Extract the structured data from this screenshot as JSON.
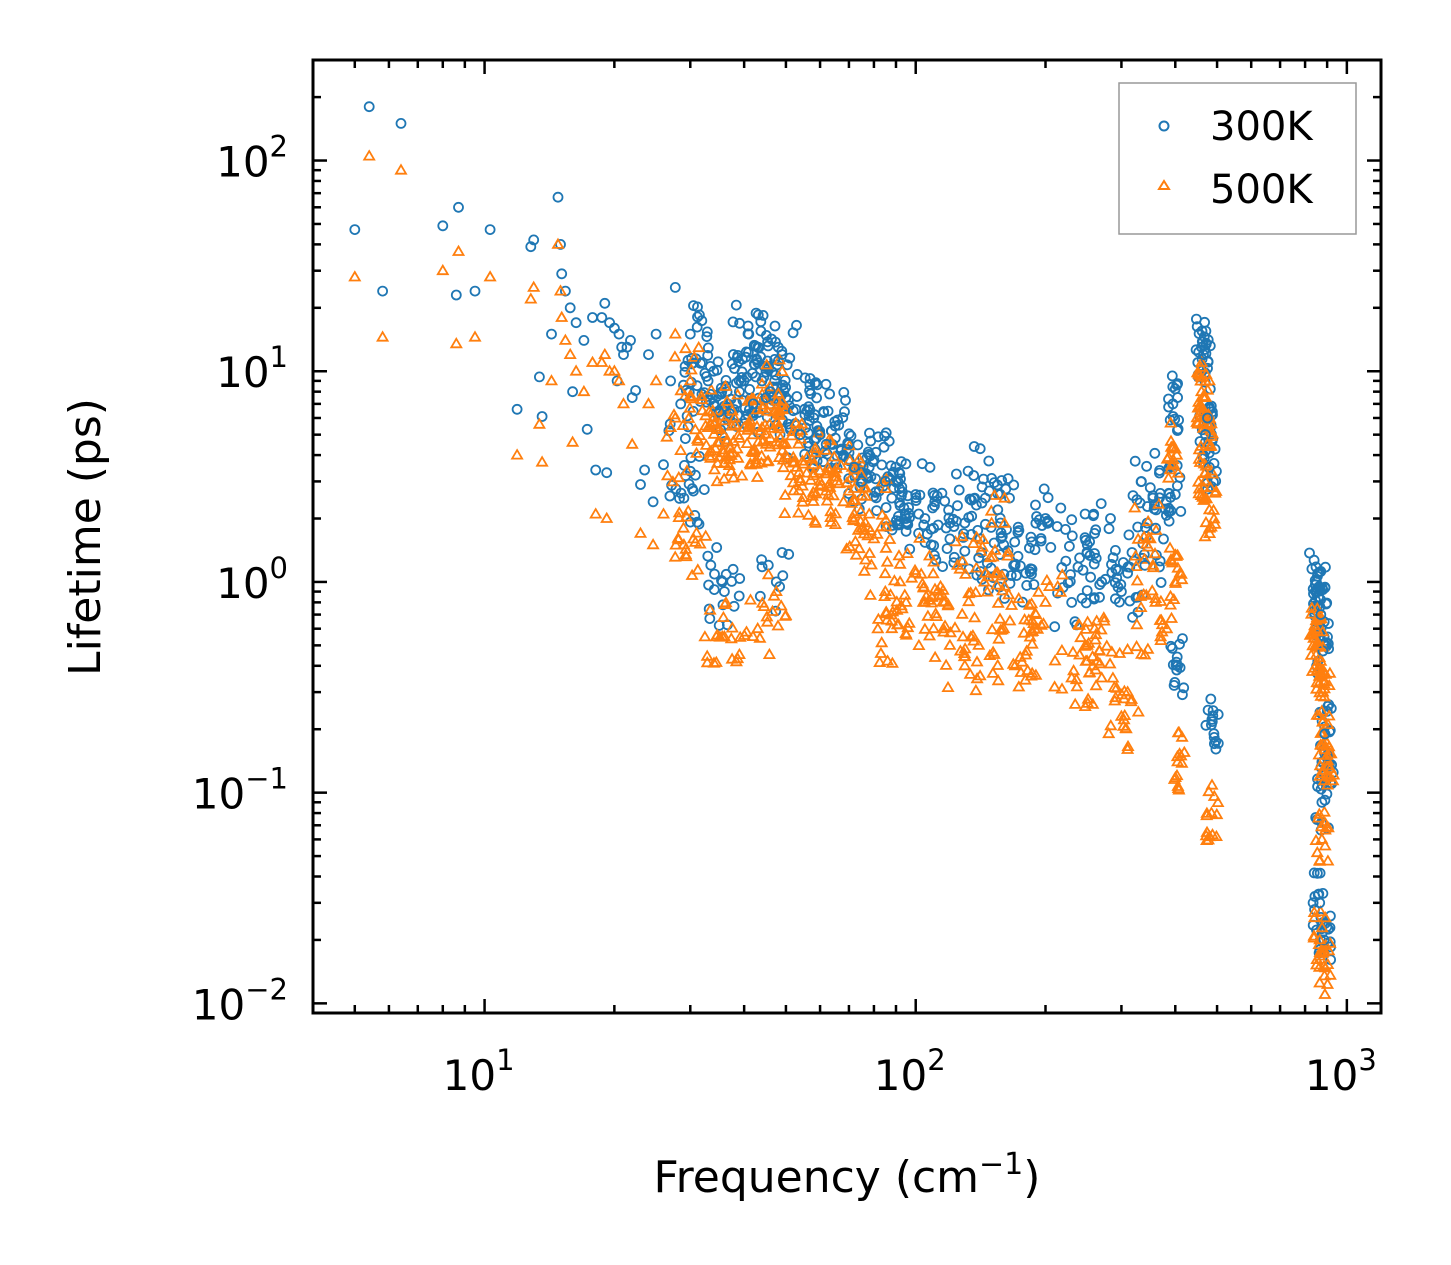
{
  "chart_data": {
    "type": "scatter",
    "xscale": "log",
    "yscale": "log",
    "xlabel": "Frequency (cm",
    "xlabel_exp": "−1",
    "xlabel_suffix": ")",
    "ylabel": "Lifetime (ps)",
    "xlim": [
      4,
      1200
    ],
    "ylim": [
      0.009,
      300
    ],
    "x_ticks": [
      {
        "value": 10,
        "base": "10",
        "exp": "1"
      },
      {
        "value": 100,
        "base": "10",
        "exp": "2"
      },
      {
        "value": 1000,
        "base": "10",
        "exp": "3"
      }
    ],
    "y_ticks": [
      {
        "value": 0.01,
        "base": "10",
        "exp": "−2"
      },
      {
        "value": 0.1,
        "base": "10",
        "exp": "−1"
      },
      {
        "value": 1,
        "base": "10",
        "exp": "0"
      },
      {
        "value": 10,
        "base": "10",
        "exp": "1"
      },
      {
        "value": 100,
        "base": "10",
        "exp": "2"
      }
    ],
    "legend_position": "top-right",
    "series": [
      {
        "name": "300K",
        "marker": "circle",
        "color": "#1f77b4",
        "points": [
          [
            5.0,
            47
          ],
          [
            5.4,
            180
          ],
          [
            5.8,
            24
          ],
          [
            6.4,
            150
          ],
          [
            8.0,
            49
          ],
          [
            8.6,
            23
          ],
          [
            8.7,
            60
          ],
          [
            9.5,
            24
          ],
          [
            10.3,
            47
          ],
          [
            11.9,
            6.6
          ],
          [
            12.8,
            39
          ],
          [
            13.0,
            42
          ],
          [
            13.4,
            9.4
          ],
          [
            13.6,
            6.1
          ],
          [
            14.3,
            15
          ],
          [
            14.8,
            67
          ],
          [
            15.0,
            40
          ],
          [
            15.1,
            29
          ],
          [
            15.4,
            24
          ],
          [
            15.8,
            20
          ],
          [
            16.0,
            8
          ],
          [
            16.3,
            17
          ],
          [
            17.0,
            14
          ],
          [
            17.3,
            5.3
          ],
          [
            17.8,
            18
          ],
          [
            18.1,
            3.4
          ],
          [
            18.7,
            18
          ],
          [
            19.0,
            21
          ],
          [
            19.2,
            3.3
          ],
          [
            19.5,
            17
          ],
          [
            20.0,
            16
          ],
          [
            20.3,
            9
          ],
          [
            20.5,
            15
          ],
          [
            20.8,
            13
          ],
          [
            21.0,
            12
          ],
          [
            21.4,
            13
          ],
          [
            21.8,
            14
          ],
          [
            22.0,
            7.5
          ],
          [
            22.4,
            8.1
          ],
          [
            23.0,
            2.9
          ],
          [
            23.5,
            3.4
          ],
          [
            24.0,
            12
          ],
          [
            24.6,
            2.4
          ],
          [
            25.0,
            15
          ],
          [
            26.0,
            3.6
          ],
          [
            27.0,
            9
          ],
          [
            27.7,
            25
          ],
          [
            28.5,
            7
          ],
          [
            29.0,
            2.5
          ],
          [
            30.0,
            15
          ],
          [
            30.5,
            2.7
          ],
          [
            32.0,
            11
          ],
          [
            33.0,
            9
          ],
          [
            34.0,
            10
          ],
          [
            35.0,
            6.4
          ],
          [
            35.6,
            1.0
          ],
          [
            36.0,
            0.9
          ],
          [
            37.0,
            6.3
          ],
          [
            38.0,
            10.3
          ],
          [
            39.0,
            8
          ],
          [
            40.0,
            9
          ],
          [
            41.0,
            15
          ],
          [
            42.0,
            7
          ],
          [
            43.0,
            13
          ],
          [
            44.0,
            9
          ],
          [
            45.0,
            7.5
          ],
          [
            46.0,
            8
          ],
          [
            47.5,
            1.0
          ],
          [
            48.0,
            13
          ],
          [
            49.0,
            12
          ],
          [
            50.0,
            7.5
          ],
          [
            52.0,
            6.5
          ],
          [
            54.0,
            5
          ],
          [
            56.0,
            6.5
          ],
          [
            58.0,
            6
          ],
          [
            60.0,
            5
          ],
          [
            62.0,
            4.5
          ],
          [
            65.0,
            5.5
          ],
          [
            68.0,
            4
          ],
          [
            70.0,
            4.5
          ],
          [
            72.0,
            3.5
          ],
          [
            75.0,
            3.0
          ],
          [
            78.0,
            3.5
          ],
          [
            80.0,
            3.8
          ],
          [
            85.0,
            3.0
          ],
          [
            88.0,
            2.5
          ],
          [
            92.0,
            2.3
          ],
          [
            95.0,
            2.0
          ],
          [
            100.0,
            2.6
          ],
          [
            105.0,
            2.0
          ],
          [
            110.0,
            1.8
          ],
          [
            120.0,
            1.6
          ],
          [
            125.0,
            2.3
          ],
          [
            130.0,
            1.4
          ],
          [
            140.0,
            1.3
          ],
          [
            145.0,
            2.5
          ],
          [
            150.0,
            3.1
          ],
          [
            155.0,
            2.2
          ],
          [
            160.0,
            1.5
          ],
          [
            170.0,
            1.2
          ],
          [
            180.0,
            1.1
          ],
          [
            190.0,
            1.9
          ],
          [
            200.0,
            2.0
          ],
          [
            230.0,
            0.8
          ],
          [
            240.0,
            1.3
          ],
          [
            250.0,
            1.5
          ],
          [
            260.0,
            1.7
          ],
          [
            270.0,
            1.0
          ],
          [
            300.0,
            0.9
          ],
          [
            310.0,
            1.1
          ],
          [
            340.0,
            1.2
          ],
          [
            350.0,
            2.8
          ],
          [
            355.0,
            2.5
          ],
          [
            360.0,
            1.8
          ],
          [
            395.0,
            7.0
          ],
          [
            400.0,
            2.6
          ],
          [
            405.0,
            0.4
          ],
          [
            460.0,
            13
          ],
          [
            465.0,
            12
          ],
          [
            470.0,
            5
          ],
          [
            475.0,
            6
          ],
          [
            480.0,
            3.5
          ],
          [
            485.0,
            0.21
          ],
          [
            850.0,
            1.0
          ],
          [
            860.0,
            0.85
          ],
          [
            870.0,
            0.7
          ],
          [
            880.0,
            0.47
          ],
          [
            890.0,
            0.19
          ],
          [
            900.0,
            0.15
          ],
          [
            875.0,
            0.09
          ],
          [
            865.0,
            0.03
          ],
          [
            885.0,
            0.02
          ]
        ]
      },
      {
        "name": "500K",
        "marker": "triangle",
        "color": "#ff7f0e",
        "points": [
          [
            5.0,
            28
          ],
          [
            5.4,
            105
          ],
          [
            5.8,
            14.5
          ],
          [
            6.4,
            90
          ],
          [
            8.0,
            30
          ],
          [
            8.6,
            13.5
          ],
          [
            8.7,
            37
          ],
          [
            9.5,
            14.5
          ],
          [
            10.3,
            28
          ],
          [
            11.9,
            4
          ],
          [
            12.8,
            22
          ],
          [
            13.0,
            25
          ],
          [
            13.4,
            5.6
          ],
          [
            13.6,
            3.7
          ],
          [
            14.3,
            9
          ],
          [
            14.8,
            40
          ],
          [
            15.0,
            24
          ],
          [
            15.1,
            18
          ],
          [
            15.4,
            14
          ],
          [
            15.8,
            12
          ],
          [
            16.0,
            4.6
          ],
          [
            16.3,
            10
          ],
          [
            17.0,
            8
          ],
          [
            17.8,
            11
          ],
          [
            18.1,
            2.1
          ],
          [
            18.7,
            11
          ],
          [
            19.0,
            12
          ],
          [
            19.2,
            2.0
          ],
          [
            19.5,
            10
          ],
          [
            20.0,
            10
          ],
          [
            20.5,
            9
          ],
          [
            21.0,
            7
          ],
          [
            22.0,
            4.5
          ],
          [
            23.0,
            1.7
          ],
          [
            24.0,
            7
          ],
          [
            24.6,
            1.5
          ],
          [
            25.0,
            9
          ],
          [
            26.0,
            2.1
          ],
          [
            27.0,
            5.4
          ],
          [
            27.7,
            15
          ],
          [
            28.5,
            4.2
          ],
          [
            29.0,
            1.5
          ],
          [
            30.0,
            9
          ],
          [
            30.5,
            1.6
          ],
          [
            32.0,
            6.5
          ],
          [
            33.0,
            5.4
          ],
          [
            34.0,
            6
          ],
          [
            35.0,
            3.9
          ],
          [
            35.6,
            0.55
          ],
          [
            36.0,
            0.55
          ],
          [
            37.0,
            3.8
          ],
          [
            38.0,
            6
          ],
          [
            39.0,
            4.8
          ],
          [
            40.0,
            5.4
          ],
          [
            42.0,
            4.2
          ],
          [
            43.0,
            0.6
          ],
          [
            44.0,
            5.4
          ],
          [
            45.0,
            4.5
          ],
          [
            46.0,
            4.8
          ],
          [
            47.5,
            0.9
          ],
          [
            48.0,
            7.8
          ],
          [
            49.0,
            7.2
          ],
          [
            50.0,
            4.5
          ],
          [
            52.0,
            3.9
          ],
          [
            54.0,
            3.0
          ],
          [
            56.0,
            3.9
          ],
          [
            58.0,
            3.6
          ],
          [
            60.0,
            3.0
          ],
          [
            62.0,
            2.7
          ],
          [
            65.0,
            3.3
          ],
          [
            68.0,
            2.4
          ],
          [
            70.0,
            2.7
          ],
          [
            72.0,
            2.1
          ],
          [
            75.0,
            1.8
          ],
          [
            78.0,
            2.1
          ],
          [
            80.0,
            1.6
          ],
          [
            85.0,
            0.9
          ],
          [
            88.0,
            0.6
          ],
          [
            92.0,
            1.0
          ],
          [
            95.0,
            0.8
          ],
          [
            100.0,
            1.1
          ],
          [
            105.0,
            0.8
          ],
          [
            110.0,
            0.6
          ],
          [
            120.0,
            0.5
          ],
          [
            125.0,
            1.2
          ],
          [
            130.0,
            0.4
          ],
          [
            140.0,
            0.5
          ],
          [
            145.0,
            1.1
          ],
          [
            150.0,
            1.9
          ],
          [
            155.0,
            1.1
          ],
          [
            160.0,
            0.6
          ],
          [
            170.0,
            0.4
          ],
          [
            180.0,
            0.45
          ],
          [
            190.0,
            0.7
          ],
          [
            200.0,
            0.8
          ],
          [
            230.0,
            0.35
          ],
          [
            240.0,
            0.45
          ],
          [
            250.0,
            0.5
          ],
          [
            260.0,
            0.6
          ],
          [
            270.0,
            0.35
          ],
          [
            300.0,
            0.23
          ],
          [
            310.0,
            0.3
          ],
          [
            340.0,
            0.45
          ],
          [
            350.0,
            1.6
          ],
          [
            355.0,
            1.2
          ],
          [
            360.0,
            0.8
          ],
          [
            395.0,
            4.3
          ],
          [
            400.0,
            1.0
          ],
          [
            405.0,
            0.14
          ],
          [
            460.0,
            8.0
          ],
          [
            465.0,
            7.5
          ],
          [
            470.0,
            3.3
          ],
          [
            475.0,
            4.5
          ],
          [
            480.0,
            2.2
          ],
          [
            485.0,
            0.08
          ],
          [
            850.0,
            0.6
          ],
          [
            860.0,
            0.5
          ],
          [
            870.0,
            0.42
          ],
          [
            880.0,
            0.3
          ],
          [
            890.0,
            0.16
          ],
          [
            900.0,
            0.15
          ],
          [
            875.0,
            0.06
          ],
          [
            865.0,
            0.02
          ],
          [
            885.0,
            0.015
          ]
        ]
      }
    ]
  }
}
